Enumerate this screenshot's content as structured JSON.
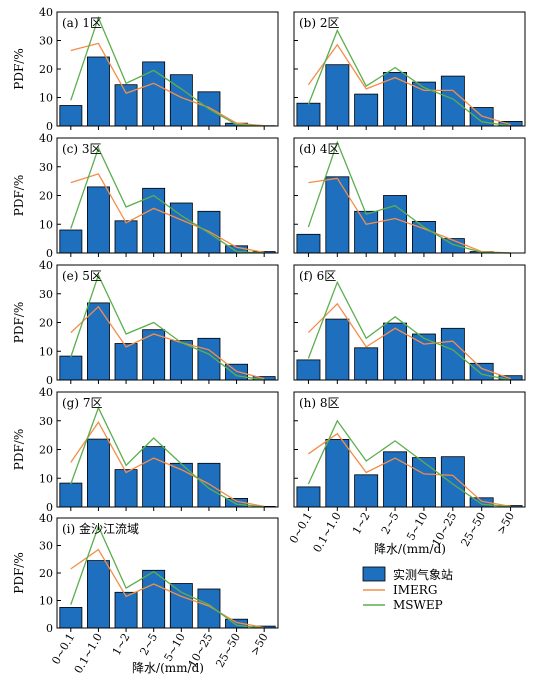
{
  "figure": {
    "ylabel": "PDF/%",
    "xlabel": "降水/(mm/d)"
  },
  "legend": {
    "items": [
      {
        "label": "实测气象站",
        "color": "#1f6fbf",
        "kind": "bar"
      },
      {
        "label": "IMERG",
        "color": "#f28e4b",
        "kind": "line"
      },
      {
        "label": "MSWEP",
        "color": "#5cae4e",
        "kind": "line"
      }
    ]
  },
  "chart_data": [
    {
      "type": "bar",
      "title": "(a) 1区",
      "ylabel": "PDF/%",
      "ylim": [
        0,
        40
      ],
      "yticks": [
        0,
        10,
        20,
        30,
        40
      ],
      "categories": [
        "0~0.1",
        "0.1~1.0",
        "1~2",
        "2~5",
        "5~10",
        "10~25",
        "25~50",
        ">50"
      ],
      "series": [
        {
          "name": "实测气象站",
          "type": "bar",
          "values": [
            7.2,
            24.2,
            14.5,
            22.5,
            18.0,
            12.0,
            1.0,
            0.1
          ]
        },
        {
          "name": "IMERG",
          "type": "line",
          "values": [
            26.5,
            29.0,
            11.5,
            15.0,
            10.0,
            6.5,
            1.0,
            0.1
          ]
        },
        {
          "name": "MSWEP",
          "type": "line",
          "values": [
            9.0,
            38.0,
            15.0,
            19.5,
            13.0,
            6.0,
            0.5,
            0.0
          ]
        }
      ]
    },
    {
      "type": "bar",
      "title": "(b) 2区",
      "ylim": [
        0,
        40
      ],
      "yticks": [
        0,
        10,
        20,
        30,
        40
      ],
      "categories": [
        "0~0.1",
        "0.1~1.0",
        "1~2",
        "2~5",
        "5~10",
        "10~25",
        "25~50",
        ">50"
      ],
      "series": [
        {
          "name": "实测气象站",
          "type": "bar",
          "values": [
            8.0,
            21.5,
            11.2,
            18.8,
            15.4,
            17.5,
            6.5,
            1.6
          ]
        },
        {
          "name": "IMERG",
          "type": "line",
          "values": [
            14.5,
            28.5,
            13.0,
            17.0,
            12.5,
            12.5,
            3.5,
            0.5
          ]
        },
        {
          "name": "MSWEP",
          "type": "line",
          "values": [
            7.5,
            33.5,
            14.0,
            20.5,
            13.5,
            9.5,
            1.5,
            0.0
          ]
        }
      ]
    },
    {
      "type": "bar",
      "title": "(c) 3区",
      "ylabel": "PDF/%",
      "ylim": [
        0,
        40
      ],
      "yticks": [
        0,
        10,
        20,
        30,
        40
      ],
      "categories": [
        "0~0.1",
        "0.1~1.0",
        "1~2",
        "2~5",
        "5~10",
        "10~25",
        "25~50",
        ">50"
      ],
      "series": [
        {
          "name": "实测气象站",
          "type": "bar",
          "values": [
            8.0,
            23.0,
            11.2,
            22.5,
            17.4,
            14.5,
            2.5,
            0.5
          ]
        },
        {
          "name": "IMERG",
          "type": "line",
          "values": [
            24.5,
            27.5,
            10.5,
            15.5,
            11.5,
            7.5,
            2.0,
            0.2
          ]
        },
        {
          "name": "MSWEP",
          "type": "line",
          "values": [
            8.5,
            36.5,
            16.0,
            20.0,
            13.0,
            7.0,
            0.5,
            0.0
          ]
        }
      ]
    },
    {
      "type": "bar",
      "title": "(d) 4区",
      "ylim": [
        0,
        40
      ],
      "yticks": [
        0,
        10,
        20,
        30,
        40
      ],
      "categories": [
        "0~0.1",
        "0.1~1.0",
        "1~2",
        "2~5",
        "5~10",
        "10~25",
        "25~50",
        ">50"
      ],
      "series": [
        {
          "name": "实测气象站",
          "type": "bar",
          "values": [
            6.5,
            26.5,
            14.5,
            20.0,
            11.0,
            5.0,
            0.5,
            0.0
          ]
        },
        {
          "name": "IMERG",
          "type": "line",
          "values": [
            24.5,
            26.0,
            10.0,
            12.0,
            8.5,
            4.5,
            0.5,
            0.0
          ]
        },
        {
          "name": "MSWEP",
          "type": "line",
          "values": [
            9.0,
            38.5,
            13.5,
            16.5,
            9.0,
            3.0,
            0.2,
            0.0
          ]
        }
      ]
    },
    {
      "type": "bar",
      "title": "(e) 5区",
      "ylabel": "PDF/%",
      "ylim": [
        0,
        40
      ],
      "yticks": [
        0,
        10,
        20,
        30,
        40
      ],
      "categories": [
        "0~0.1",
        "0.1~1.0",
        "1~2",
        "2~5",
        "5~10",
        "10~25",
        "25~50",
        ">50"
      ],
      "series": [
        {
          "name": "实测气象站",
          "type": "bar",
          "values": [
            8.3,
            26.8,
            12.7,
            17.5,
            13.7,
            14.5,
            5.5,
            1.2
          ]
        },
        {
          "name": "IMERG",
          "type": "line",
          "values": [
            16.5,
            25.5,
            11.5,
            16.0,
            13.0,
            10.5,
            3.0,
            0.5
          ]
        },
        {
          "name": "MSWEP",
          "type": "line",
          "values": [
            8.0,
            36.5,
            16.0,
            20.0,
            13.0,
            9.0,
            1.5,
            0.0
          ]
        }
      ]
    },
    {
      "type": "bar",
      "title": "(f) 6区",
      "ylim": [
        0,
        40
      ],
      "yticks": [
        0,
        10,
        20,
        30,
        40
      ],
      "categories": [
        "0~0.1",
        "0.1~1.0",
        "1~2",
        "2~5",
        "5~10",
        "10~25",
        "25~50",
        ">50"
      ],
      "series": [
        {
          "name": "实测气象站",
          "type": "bar",
          "values": [
            7.0,
            21.2,
            11.2,
            19.8,
            16.0,
            18.0,
            5.8,
            1.5
          ]
        },
        {
          "name": "IMERG",
          "type": "line",
          "values": [
            16.5,
            26.5,
            11.5,
            18.0,
            12.5,
            13.5,
            4.0,
            0.5
          ]
        },
        {
          "name": "MSWEP",
          "type": "line",
          "values": [
            7.5,
            34.0,
            14.5,
            22.0,
            14.5,
            10.5,
            2.0,
            0.0
          ]
        }
      ]
    },
    {
      "type": "bar",
      "title": "(g) 7区",
      "ylabel": "PDF/%",
      "ylim": [
        0,
        40
      ],
      "yticks": [
        0,
        10,
        20,
        30,
        40
      ],
      "categories": [
        "0~0.1",
        "0.1~1.0",
        "1~2",
        "2~5",
        "5~10",
        "10~25",
        "25~50",
        ">50"
      ],
      "series": [
        {
          "name": "实测气象站",
          "type": "bar",
          "values": [
            8.3,
            23.6,
            13.0,
            21.0,
            15.2,
            15.2,
            3.0,
            0.2
          ]
        },
        {
          "name": "IMERG",
          "type": "line",
          "values": [
            15.5,
            29.5,
            12.0,
            17.0,
            13.0,
            8.0,
            2.0,
            0.2
          ]
        },
        {
          "name": "MSWEP",
          "type": "line",
          "values": [
            8.0,
            34.5,
            14.5,
            24.0,
            15.0,
            6.5,
            1.0,
            0.0
          ]
        }
      ]
    },
    {
      "type": "bar",
      "title": "(h) 8区",
      "ylim": [
        0,
        40
      ],
      "yticks": [
        0,
        10,
        20,
        30,
        40
      ],
      "categories": [
        "0~0.1",
        "0.1~1.0",
        "1~2",
        "2~5",
        "5~10",
        "10~25",
        "25~50",
        ">50"
      ],
      "series": [
        {
          "name": "实测气象站",
          "type": "bar",
          "values": [
            7.0,
            23.5,
            11.2,
            19.2,
            17.2,
            17.5,
            3.2,
            0.5
          ]
        },
        {
          "name": "IMERG",
          "type": "line",
          "values": [
            18.5,
            25.5,
            12.0,
            17.0,
            11.5,
            11.0,
            2.0,
            0.2
          ]
        },
        {
          "name": "MSWEP",
          "type": "line",
          "values": [
            8.0,
            30.0,
            16.0,
            23.0,
            15.5,
            8.0,
            1.0,
            0.0
          ]
        }
      ]
    },
    {
      "type": "bar",
      "title": "(i) 金沙江流域",
      "ylabel": "PDF/%",
      "ylim": [
        0,
        40
      ],
      "yticks": [
        0,
        10,
        20,
        30,
        40
      ],
      "categories": [
        "0~0.1",
        "0.1~1.0",
        "1~2",
        "2~5",
        "5~10",
        "10~25",
        "25~50",
        ">50"
      ],
      "series": [
        {
          "name": "实测气象站",
          "type": "bar",
          "values": [
            7.5,
            24.5,
            13.0,
            21.0,
            16.2,
            14.2,
            3.2,
            0.7
          ]
        },
        {
          "name": "IMERG",
          "type": "line",
          "values": [
            21.5,
            28.5,
            11.5,
            16.0,
            11.5,
            8.0,
            2.0,
            0.2
          ]
        },
        {
          "name": "MSWEP",
          "type": "line",
          "values": [
            8.5,
            37.0,
            14.5,
            20.5,
            13.0,
            8.5,
            1.0,
            0.0
          ]
        }
      ]
    }
  ]
}
